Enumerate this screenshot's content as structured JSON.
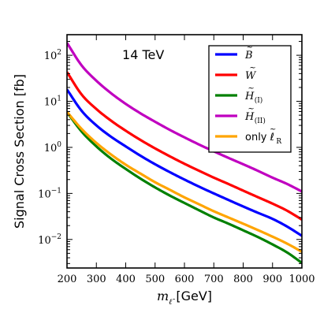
{
  "chart_data": {
    "type": "line",
    "title": "",
    "annotation": "14 TeV",
    "xlabel": "m_ℓ̃ [GeV]",
    "xlabel_parts": {
      "symbol": "m",
      "subscript": "ℓ̃",
      "unit": "[GeV]"
    },
    "ylabel": "Signal Cross Section [fb]",
    "xlim": [
      200,
      1000
    ],
    "ylim": [
      0.0024,
      280
    ],
    "yscale": "log",
    "xticks": [
      "200",
      "300",
      "400",
      "500",
      "600",
      "700",
      "800",
      "900",
      "1000"
    ],
    "yticks": [
      {
        "base": "10",
        "exp": "−2",
        "value": 0.01
      },
      {
        "base": "10",
        "exp": "−1",
        "value": 0.1
      },
      {
        "base": "10",
        "exp": "0",
        "value": 1
      },
      {
        "base": "10",
        "exp": "1",
        "value": 10
      },
      {
        "base": "10",
        "exp": "2",
        "value": 100
      }
    ],
    "grid": false,
    "legend_position": "top-right",
    "x": [
      200,
      250,
      300,
      350,
      400,
      450,
      500,
      550,
      600,
      650,
      700,
      750,
      800,
      850,
      900,
      950,
      1000
    ],
    "series": [
      {
        "name": "B̃",
        "legend": {
          "main": "B",
          "mark": "~",
          "sub": ""
        },
        "color": "#0000ff",
        "values": [
          18,
          6.2,
          3.0,
          1.7,
          1.05,
          0.66,
          0.43,
          0.29,
          0.2,
          0.14,
          0.1,
          0.072,
          0.052,
          0.038,
          0.028,
          0.019,
          0.012
        ]
      },
      {
        "name": "W̃",
        "legend": {
          "main": "W",
          "mark": "~",
          "sub": ""
        },
        "color": "#ff0000",
        "values": [
          43,
          14,
          6.8,
          3.8,
          2.3,
          1.45,
          0.95,
          0.64,
          0.44,
          0.31,
          0.22,
          0.16,
          0.115,
          0.083,
          0.06,
          0.042,
          0.027
        ]
      },
      {
        "name": "H̃(I)",
        "legend": {
          "main": "H",
          "mark": "~",
          "sub": "(I)"
        },
        "color": "#008000",
        "values": [
          5.8,
          2.2,
          1.05,
          0.57,
          0.34,
          0.21,
          0.135,
          0.09,
          0.062,
          0.043,
          0.03,
          0.022,
          0.0158,
          0.0113,
          0.0078,
          0.0052,
          0.0031
        ]
      },
      {
        "name": "H̃(II)",
        "legend": {
          "main": "H",
          "mark": "~",
          "sub": "(II)"
        },
        "color": "#c000c0",
        "values": [
          185,
          60,
          28,
          15,
          8.8,
          5.5,
          3.6,
          2.4,
          1.65,
          1.15,
          0.82,
          0.59,
          0.43,
          0.31,
          0.22,
          0.16,
          0.11
        ]
      },
      {
        "name": "only ℓ̃R",
        "legend": {
          "main": "only ℓ",
          "mark": "~",
          "sub": "R"
        },
        "color": "#ffa500",
        "values": [
          5.9,
          2.5,
          1.25,
          0.7,
          0.42,
          0.27,
          0.175,
          0.12,
          0.082,
          0.058,
          0.041,
          0.03,
          0.022,
          0.016,
          0.0115,
          0.0081,
          0.0054
        ]
      }
    ]
  }
}
